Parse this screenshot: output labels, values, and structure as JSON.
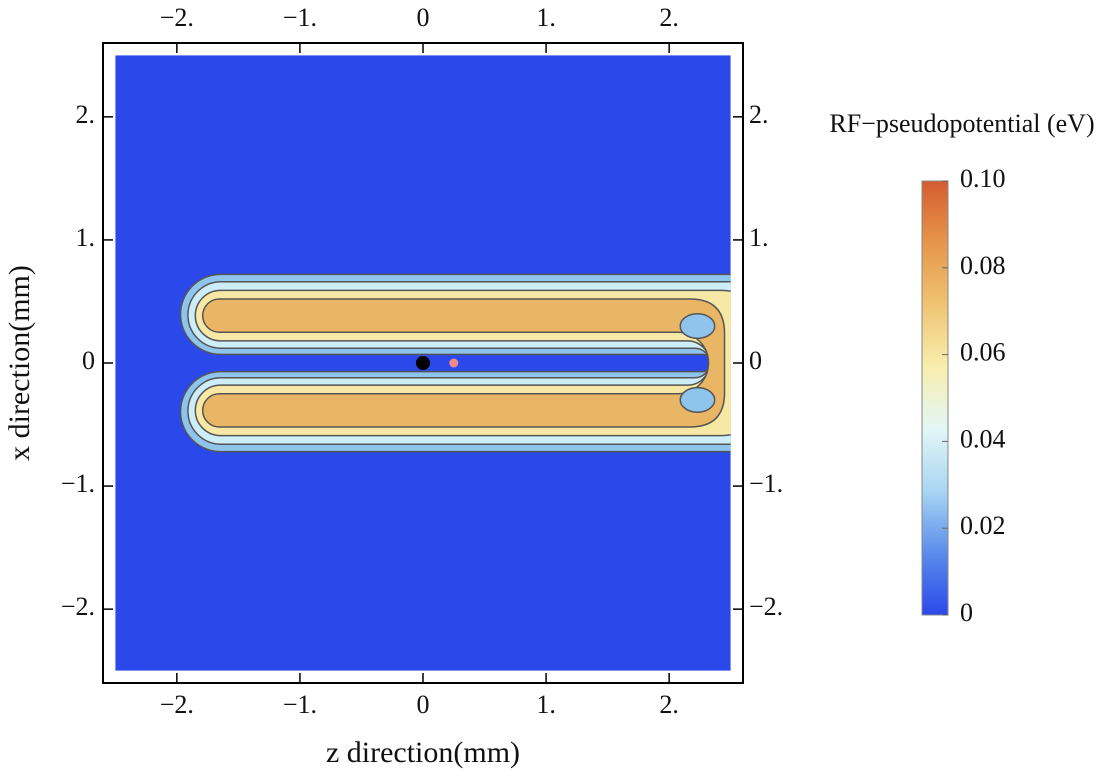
{
  "chart_data": {
    "type": "contour",
    "xlabel": "z direction(mm)",
    "ylabel": "x direction(mm)",
    "xlim": [
      -2.6,
      2.6
    ],
    "ylim": [
      -2.6,
      2.6
    ],
    "data_range": [
      -2.5,
      2.5
    ],
    "xticks": [
      {
        "value": -2,
        "label": "−2."
      },
      {
        "value": -1,
        "label": "−1."
      },
      0,
      {
        "value": 1,
        "label": "1."
      },
      {
        "value": 2,
        "label": "2."
      }
    ],
    "yticks": [
      {
        "value": -2,
        "label": "−2."
      },
      {
        "value": -1,
        "label": "−1."
      },
      0,
      {
        "value": 1,
        "label": "1."
      },
      {
        "value": 2,
        "label": "2."
      }
    ],
    "background_color": "#2b48ea",
    "contours": [
      {
        "level": 0.01,
        "color": "#8fc4ec"
      },
      {
        "level": 0.02,
        "color": "#cdeef8"
      },
      {
        "level": 0.04,
        "color": "#f7e8a6"
      },
      {
        "level": 0.06,
        "color": "#e9b666"
      }
    ],
    "points": [
      {
        "z": 0,
        "x": 0,
        "color": "#000000"
      },
      {
        "z": 0.25,
        "x": 0,
        "color": "#f08a8a"
      }
    ],
    "colorbar": {
      "title": "RF−pseudopotential (eV)",
      "lim": [
        0,
        0.1
      ],
      "ticks": [
        0,
        0.02,
        0.04,
        0.06,
        0.08,
        {
          "value": 0.1,
          "label": "0.10"
        }
      ],
      "colors": [
        "#2b48ea",
        "#5a8cea",
        "#a9d6f2",
        "#e2f6f6",
        "#f8eeae",
        "#f0c474",
        "#e6964a",
        "#d45c30"
      ]
    }
  }
}
